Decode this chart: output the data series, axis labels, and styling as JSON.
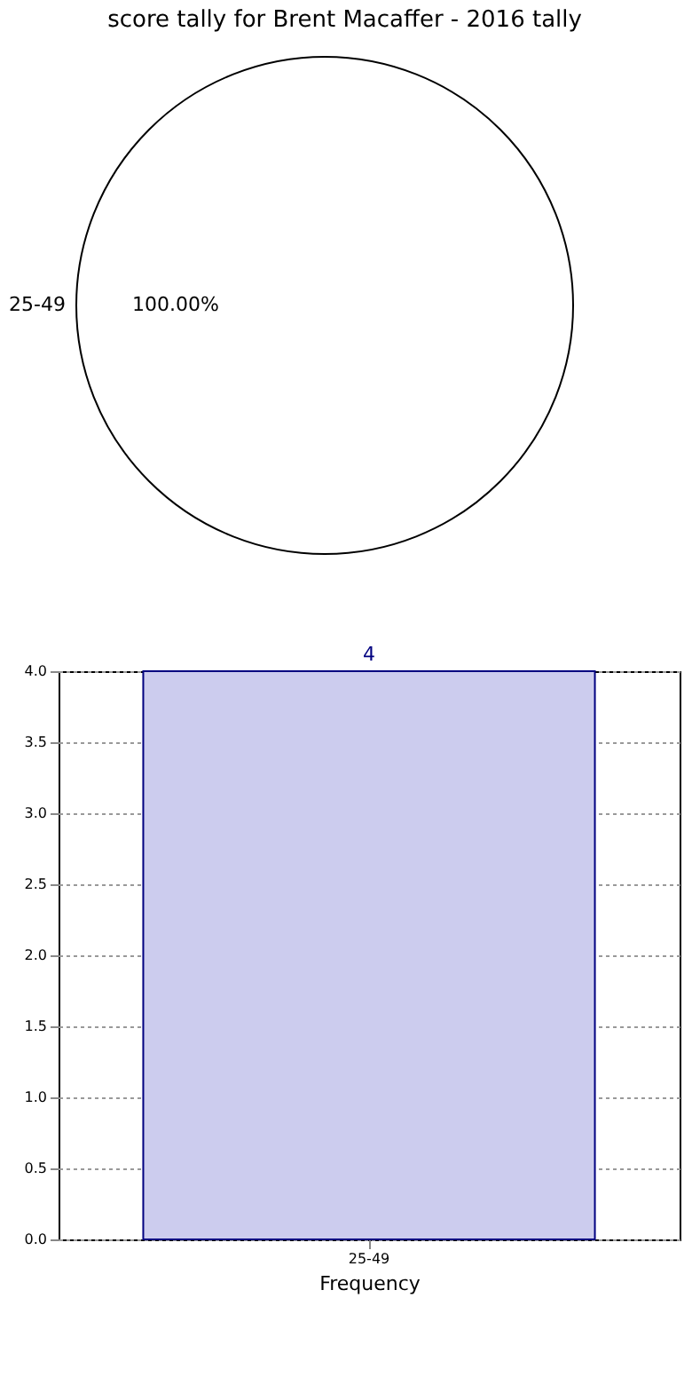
{
  "chart_data": [
    {
      "type": "pie",
      "title": "score tally for Brent Macaffer - 2016 tally",
      "categories": [
        "25-49"
      ],
      "values": [
        100
      ],
      "colors": [
        "#ffffff"
      ],
      "value_labels": [
        "100.00%"
      ]
    },
    {
      "type": "bar",
      "categories": [
        "25-49"
      ],
      "values": [
        4
      ],
      "color": "#ccccee",
      "xlabel": "Frequency",
      "ylim": [
        0,
        4
      ],
      "yticks": [
        {
          "value": 0,
          "label": "0.0"
        },
        {
          "value": 0.5,
          "label": "0.5"
        },
        {
          "value": 1,
          "label": "1.0"
        },
        {
          "value": 1.5,
          "label": "1.5"
        },
        {
          "value": 2,
          "label": "2.0"
        },
        {
          "value": 2.5,
          "label": "2.5"
        },
        {
          "value": 3,
          "label": "3.0"
        },
        {
          "value": 3.5,
          "label": "3.5"
        },
        {
          "value": 4,
          "label": "4.0"
        }
      ],
      "data_labels": true,
      "grid": true
    }
  ]
}
